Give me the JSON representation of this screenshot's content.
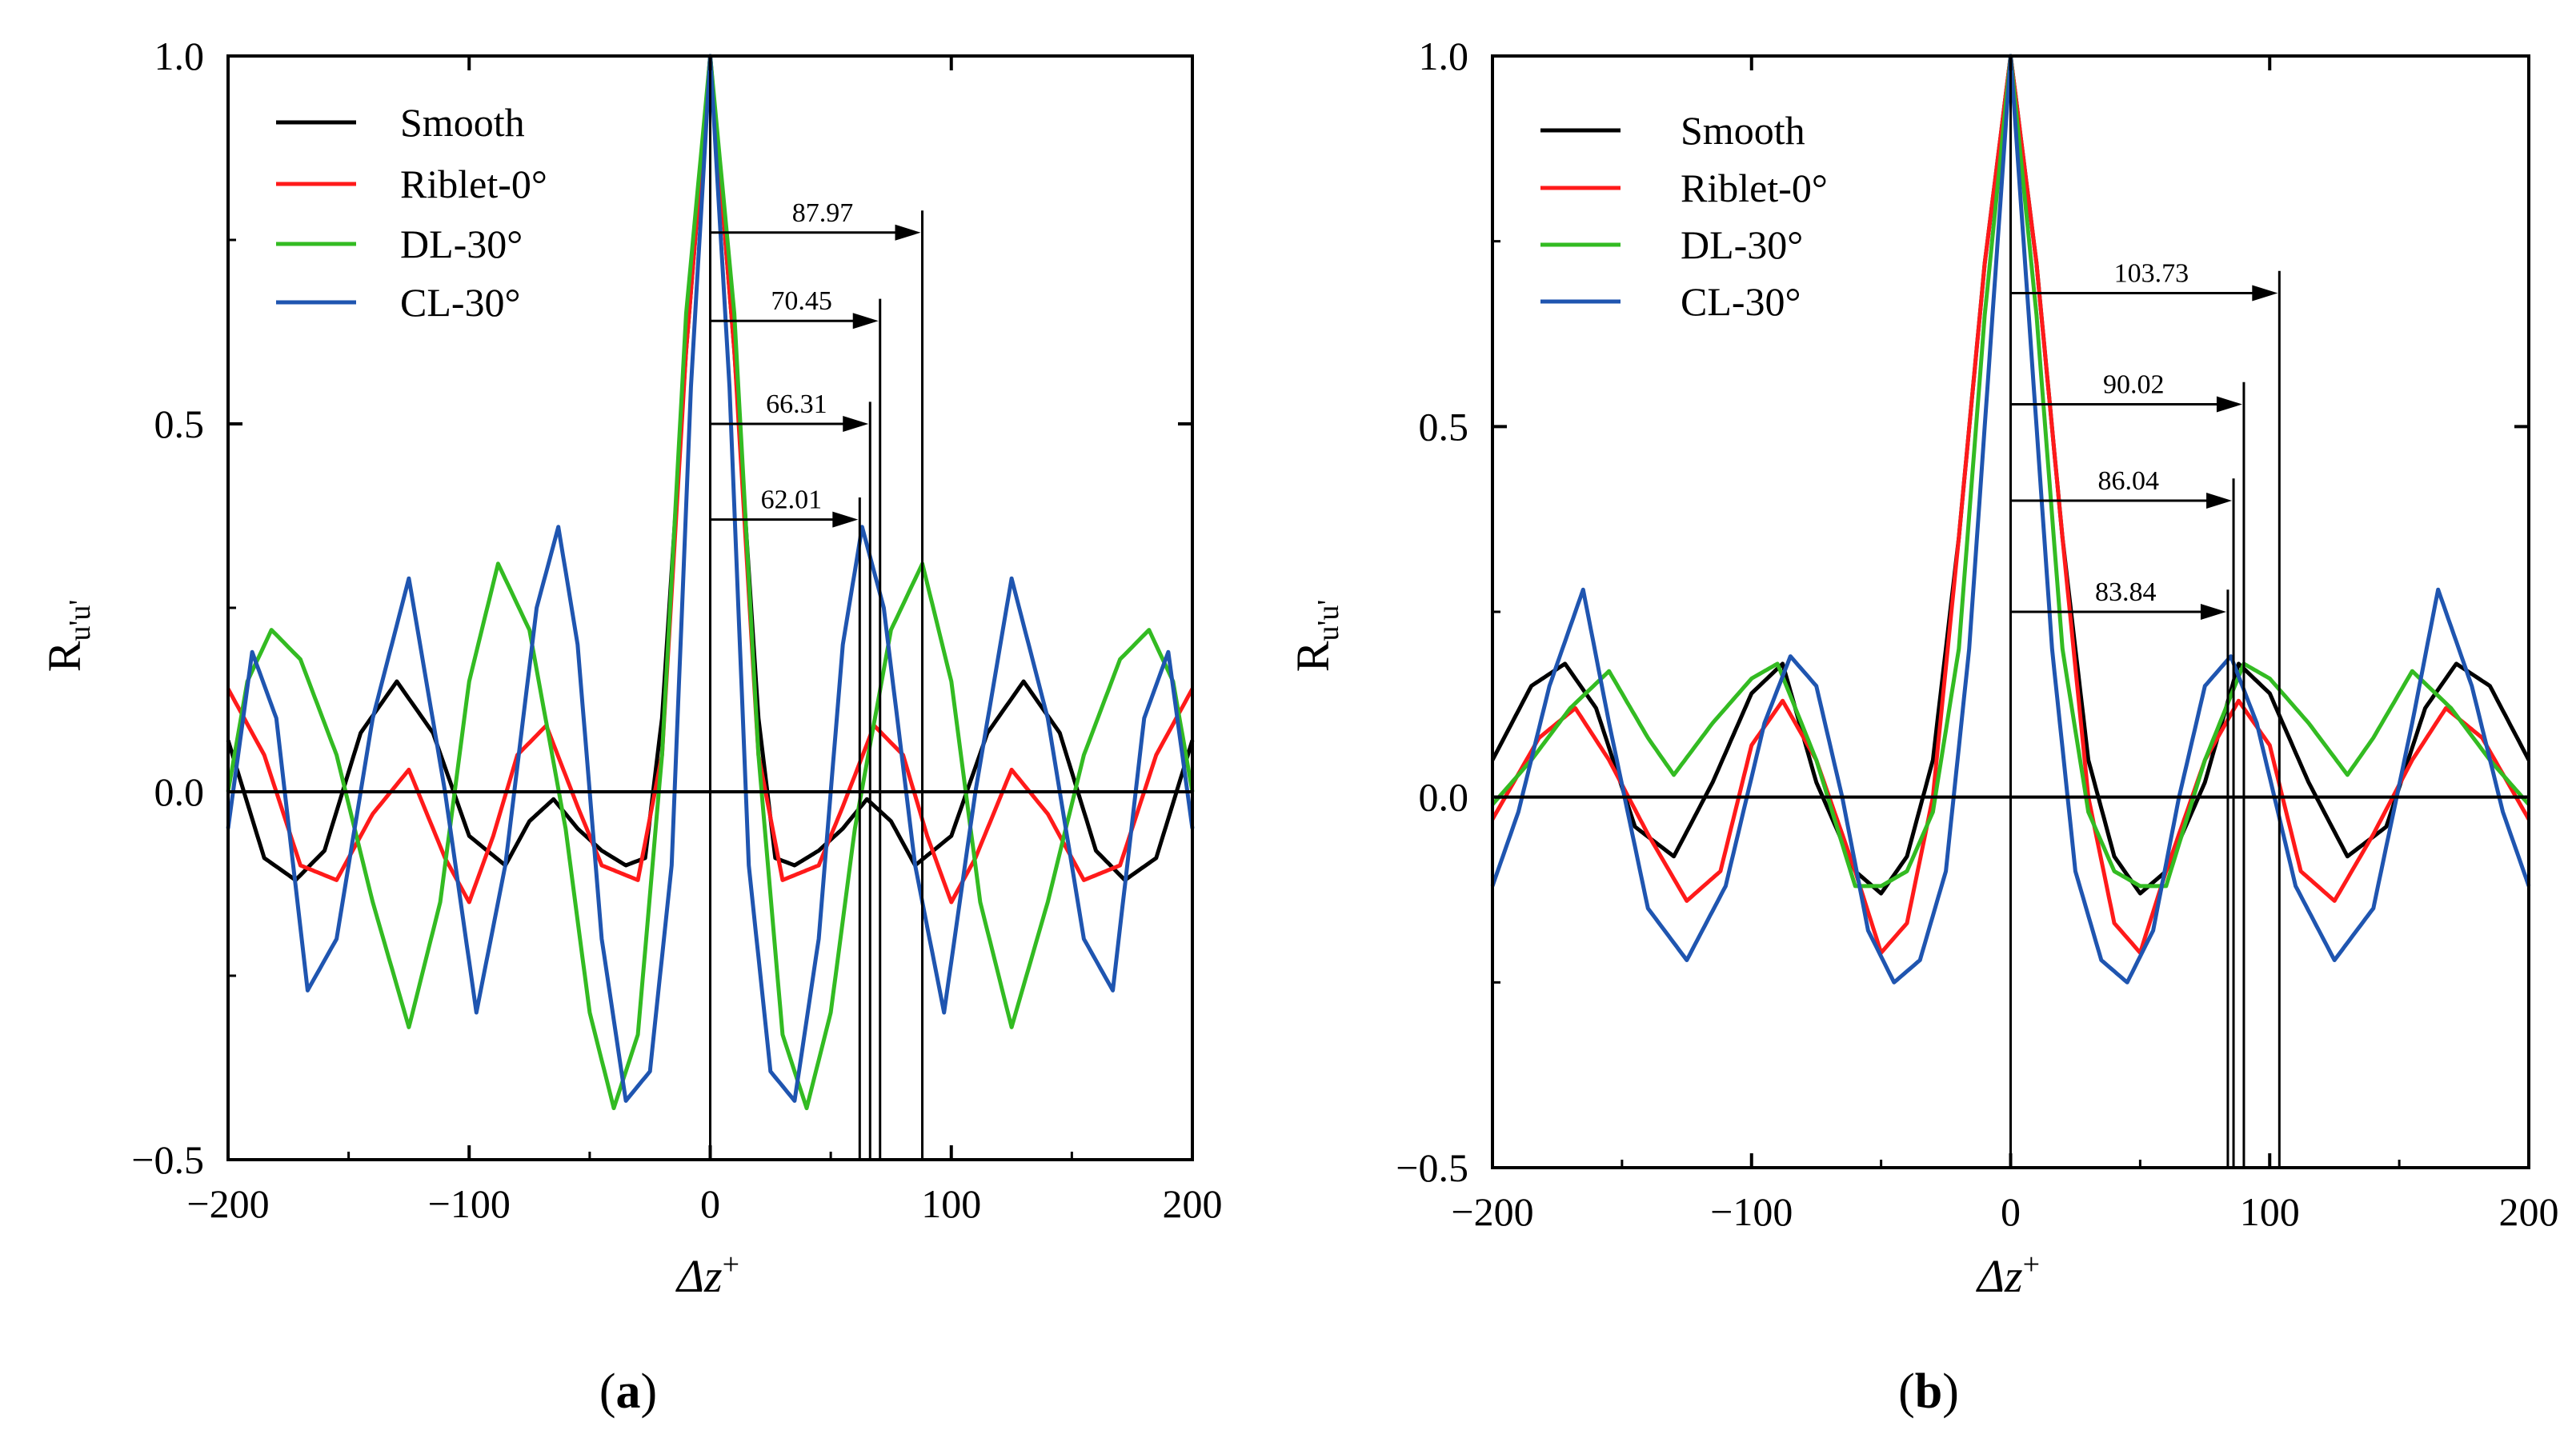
{
  "figure": {
    "panels": [
      {
        "caption_open": "(",
        "caption_letter": "a",
        "caption_close": ")",
        "ylabel_main": "R",
        "ylabel_sub": "u'u'",
        "xlabel_main": "Δz",
        "xlabel_sup": "+",
        "x_ticks": [
          {
            "v": -200,
            "label": "−200"
          },
          {
            "v": -100,
            "label": "−100"
          },
          {
            "v": 0,
            "label": "0"
          },
          {
            "v": 100,
            "label": "100"
          },
          {
            "v": 200,
            "label": "200"
          }
        ],
        "y_ticks": [
          {
            "v": -0.5,
            "label": "−0.5"
          },
          {
            "v": 0.0,
            "label": "0.0"
          },
          {
            "v": 0.5,
            "label": "0.5"
          },
          {
            "v": 1.0,
            "label": "1.0"
          }
        ]
      },
      {
        "caption_open": "(",
        "caption_letter": "b",
        "caption_close": ")",
        "ylabel_main": "R",
        "ylabel_sub": "u'u'",
        "xlabel_main": "Δz",
        "xlabel_sup": "+",
        "x_ticks": [
          {
            "v": -200,
            "label": "−200"
          },
          {
            "v": -100,
            "label": "−100"
          },
          {
            "v": 0,
            "label": "0"
          },
          {
            "v": 100,
            "label": "100"
          },
          {
            "v": 200,
            "label": "200"
          }
        ],
        "y_ticks": [
          {
            "v": -0.5,
            "label": "−0.5"
          },
          {
            "v": 0.0,
            "label": "0.0"
          },
          {
            "v": 0.5,
            "label": "0.5"
          },
          {
            "v": 1.0,
            "label": "1.0"
          }
        ]
      }
    ]
  },
  "chart_data": [
    {
      "type": "line",
      "panel": "a",
      "title": "",
      "xlabel": "Δz+",
      "ylabel": "Ru'u'",
      "xlim": [
        -200,
        200
      ],
      "ylim": [
        -0.5,
        1.0
      ],
      "legend_position": "top-left",
      "series": [
        {
          "name": "Smooth",
          "color": "#000000",
          "x": [
            0,
            10,
            20,
            27,
            35,
            45,
            55,
            65,
            75,
            85,
            100,
            115,
            130,
            145,
            160,
            172,
            185,
            200
          ],
          "y": [
            1.0,
            0.6,
            0.1,
            -0.09,
            -0.1,
            -0.08,
            -0.05,
            -0.01,
            -0.04,
            -0.1,
            -0.06,
            0.08,
            0.15,
            0.08,
            -0.08,
            -0.12,
            -0.09,
            0.07
          ]
        },
        {
          "name": "Riblet-0°",
          "color": "#ff1a1a",
          "x": [
            0,
            10,
            20,
            30,
            45,
            55,
            68,
            80,
            90,
            100,
            110,
            125,
            140,
            155,
            170,
            185,
            200
          ],
          "y": [
            1.0,
            0.6,
            0.05,
            -0.12,
            -0.1,
            -0.02,
            0.09,
            0.05,
            -0.06,
            -0.15,
            -0.09,
            0.03,
            -0.03,
            -0.12,
            -0.1,
            0.05,
            0.14
          ]
        },
        {
          "name": "DL-30°",
          "color": "#33bb22",
          "x": [
            0,
            10,
            20,
            30,
            40,
            50,
            60,
            75,
            88,
            100,
            112,
            125,
            140,
            155,
            170,
            182,
            192,
            200
          ],
          "y": [
            1.0,
            0.65,
            0.05,
            -0.33,
            -0.43,
            -0.3,
            -0.05,
            0.22,
            0.31,
            0.15,
            -0.15,
            -0.32,
            -0.15,
            0.05,
            0.18,
            0.22,
            0.15,
            0.0
          ]
        },
        {
          "name": "CL-30°",
          "color": "#1f55b0",
          "x": [
            0,
            8,
            16,
            25,
            35,
            45,
            55,
            63,
            72,
            85,
            97,
            110,
            125,
            140,
            155,
            167,
            180,
            190,
            200
          ],
          "y": [
            1.0,
            0.55,
            -0.1,
            -0.38,
            -0.42,
            -0.2,
            0.2,
            0.36,
            0.25,
            -0.1,
            -0.3,
            0.0,
            0.29,
            0.1,
            -0.2,
            -0.27,
            0.1,
            0.19,
            -0.05
          ]
        }
      ],
      "annotations": [
        {
          "text": "87.97",
          "x": 87.97,
          "y": 0.76
        },
        {
          "text": "70.45",
          "x": 70.45,
          "y": 0.64
        },
        {
          "text": "66.31",
          "x": 66.31,
          "y": 0.5
        },
        {
          "text": "62.01",
          "x": 62.01,
          "y": 0.37
        }
      ]
    },
    {
      "type": "line",
      "panel": "b",
      "title": "",
      "xlabel": "Δz+",
      "ylabel": "Ru'u'",
      "xlim": [
        -200,
        200
      ],
      "ylim": [
        -0.5,
        1.0
      ],
      "legend_position": "top-left",
      "series": [
        {
          "name": "Smooth",
          "color": "#000000",
          "x": [
            0,
            10,
            20,
            30,
            40,
            50,
            60,
            75,
            88,
            100,
            115,
            130,
            145,
            160,
            172,
            185,
            200
          ],
          "y": [
            1.0,
            0.72,
            0.35,
            0.05,
            -0.08,
            -0.13,
            -0.1,
            0.02,
            0.18,
            0.14,
            0.02,
            -0.08,
            -0.04,
            0.12,
            0.18,
            0.15,
            0.05
          ]
        },
        {
          "name": "Riblet-0°",
          "color": "#ff1a1a",
          "x": [
            0,
            10,
            20,
            30,
            40,
            50,
            60,
            75,
            88,
            100,
            112,
            125,
            140,
            155,
            168,
            182,
            200
          ],
          "y": [
            1.0,
            0.72,
            0.35,
            0.0,
            -0.17,
            -0.21,
            -0.1,
            0.05,
            0.13,
            0.07,
            -0.1,
            -0.14,
            -0.05,
            0.05,
            0.12,
            0.08,
            -0.03
          ]
        },
        {
          "name": "DL-30°",
          "color": "#33bb22",
          "x": [
            0,
            10,
            20,
            30,
            40,
            50,
            60,
            75,
            90,
            100,
            115,
            130,
            140,
            155,
            170,
            185,
            200
          ],
          "y": [
            1.0,
            0.65,
            0.2,
            -0.02,
            -0.1,
            -0.12,
            -0.12,
            0.05,
            0.18,
            0.16,
            0.1,
            0.03,
            0.08,
            0.17,
            0.12,
            0.05,
            -0.01
          ]
        },
        {
          "name": "CL-30°",
          "color": "#1f55b0",
          "x": [
            0,
            8,
            16,
            25,
            35,
            45,
            55,
            65,
            75,
            85,
            95,
            110,
            125,
            140,
            155,
            165,
            178,
            190,
            200
          ],
          "y": [
            1.0,
            0.6,
            0.2,
            -0.1,
            -0.22,
            -0.25,
            -0.18,
            0.0,
            0.15,
            0.19,
            0.1,
            -0.12,
            -0.22,
            -0.15,
            0.1,
            0.28,
            0.15,
            -0.02,
            -0.12
          ]
        }
      ],
      "annotations": [
        {
          "text": "103.73",
          "x": 103.73,
          "y": 0.68
        },
        {
          "text": "90.02",
          "x": 90.02,
          "y": 0.53
        },
        {
          "text": "86.04",
          "x": 86.04,
          "y": 0.4
        },
        {
          "text": "83.84",
          "x": 83.84,
          "y": 0.25
        }
      ]
    }
  ]
}
